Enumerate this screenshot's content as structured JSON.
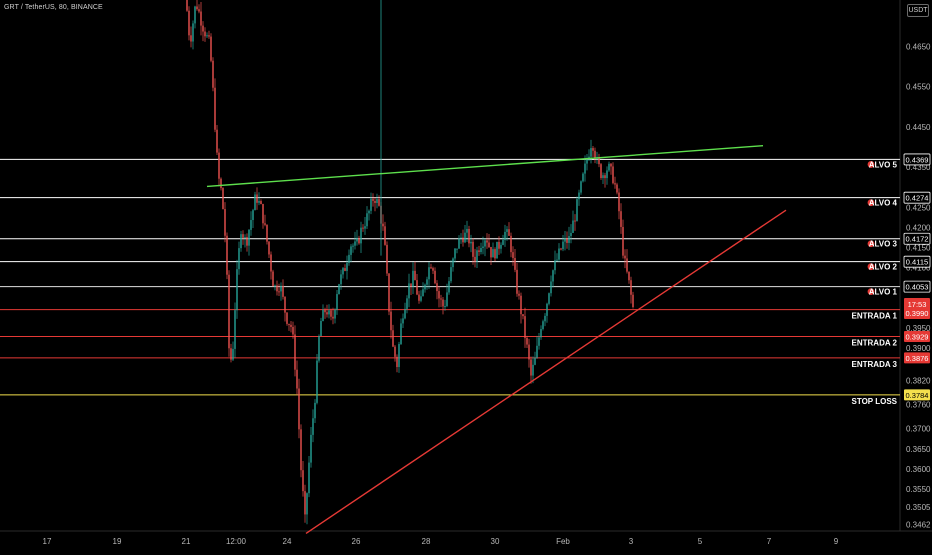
{
  "header": {
    "symbol_title": "GRT / TetherUS, 80, BINANCE",
    "currency": "USDT"
  },
  "chart_data": {
    "type": "candlestick",
    "background": "#000000",
    "up_color": "#26a69a",
    "down_color": "#ef5350",
    "price_axis": {
      "range": [
        0.3446,
        0.4765
      ],
      "ticks": [
        "0.4650",
        "0.4550",
        "0.4450",
        "0.4350",
        "0.4250",
        "0.4200",
        "0.4150",
        "0.4100",
        "0.4050",
        "0.3950",
        "0.3900",
        "0.3820",
        "0.3760",
        "0.3700",
        "0.3650",
        "0.3600",
        "0.3550",
        "0.3505",
        "0.3462"
      ]
    },
    "time_axis": {
      "ticks": [
        "17",
        "19",
        "21",
        "12:00",
        "24",
        "26",
        "28",
        "30",
        "Feb",
        "3",
        "5",
        "7",
        "9"
      ]
    },
    "levels": [
      {
        "label": "ALVO 5",
        "price": "0.4369",
        "color": "#ffffff",
        "tag_text": "#000000",
        "tag_bg": "#ffffff"
      },
      {
        "label": "ALVO 4",
        "price": "0.4274",
        "color": "#ffffff",
        "tag_text": "#000000",
        "tag_bg": "#ffffff"
      },
      {
        "label": "ALVO 3",
        "price": "0.4172",
        "color": "#ffffff",
        "tag_text": "#000000",
        "tag_bg": "#ffffff"
      },
      {
        "label": "ALVO 2",
        "price": "0.4115",
        "color": "#ffffff",
        "tag_text": "#000000",
        "tag_bg": "#ffffff"
      },
      {
        "label": "ALVO 1",
        "price": "0.4053",
        "color": "#e0e0e0",
        "tag_text": "#000000",
        "tag_bg": "#ffffff"
      },
      {
        "label": "ENTRADA 1",
        "price": "0.3996",
        "color": "#e53935",
        "tag_text": "#ffffff",
        "tag_bg": "#e53935"
      },
      {
        "label": "ENTRADA 2",
        "price": "0.3929",
        "color": "#e53935",
        "tag_text": "#ffffff",
        "tag_bg": "#e53935"
      },
      {
        "label": "ENTRADA 3",
        "price": "0.3876",
        "color": "#e53935",
        "tag_text": "#ffffff",
        "tag_bg": "#e53935"
      },
      {
        "label": "STOP LOSS",
        "price": "0.3784",
        "color": "#f4e04d",
        "tag_text": "#000000",
        "tag_bg": "#f4e04d"
      }
    ],
    "last_price": {
      "price": "0.3990",
      "countdown": "17:53",
      "color": "#e53935"
    },
    "trendlines": [
      {
        "name": "resistance",
        "color": "#5ee04d",
        "from": {
          "date": "Jan 21",
          "price": 0.4302
        },
        "to": {
          "date": "Feb 6",
          "price": 0.4403
        }
      },
      {
        "name": "support",
        "color": "#e53935",
        "from": {
          "date": "Jan 24",
          "price": 0.344
        },
        "to": {
          "date": "Feb 7",
          "price": 0.4243
        }
      }
    ]
  }
}
